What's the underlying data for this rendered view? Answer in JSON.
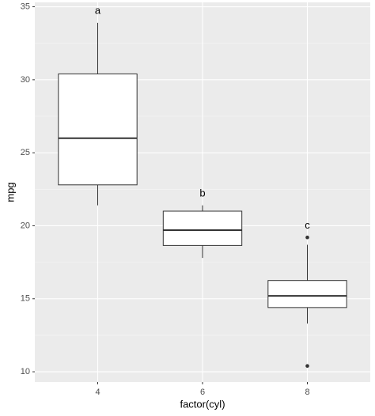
{
  "chart_data": {
    "type": "boxplot",
    "x_label": "factor(cyl)",
    "y_label": "mpg",
    "categories": [
      "4",
      "6",
      "8"
    ],
    "boxes": [
      {
        "min": 21.4,
        "q1": 22.8,
        "median": 26.0,
        "q3": 30.4,
        "max": 33.9,
        "outliers": []
      },
      {
        "min": 17.8,
        "q1": 18.65,
        "median": 19.7,
        "q3": 21.0,
        "max": 21.4,
        "outliers": []
      },
      {
        "min": 13.3,
        "q1": 14.4,
        "median": 15.2,
        "q3": 16.25,
        "max": 18.7,
        "outliers": [
          10.4,
          19.2
        ]
      }
    ],
    "annotations": [
      {
        "text": "a",
        "y": 34.7
      },
      {
        "text": "b",
        "y": 22.2
      },
      {
        "text": "c",
        "y": 20.0
      }
    ],
    "ylim": [
      9.3,
      35.3
    ],
    "yticks": [
      10,
      15,
      20,
      25,
      30,
      35
    ],
    "minor_yticks": [
      12.5,
      17.5,
      22.5,
      27.5,
      32.5
    ],
    "grid": true
  }
}
